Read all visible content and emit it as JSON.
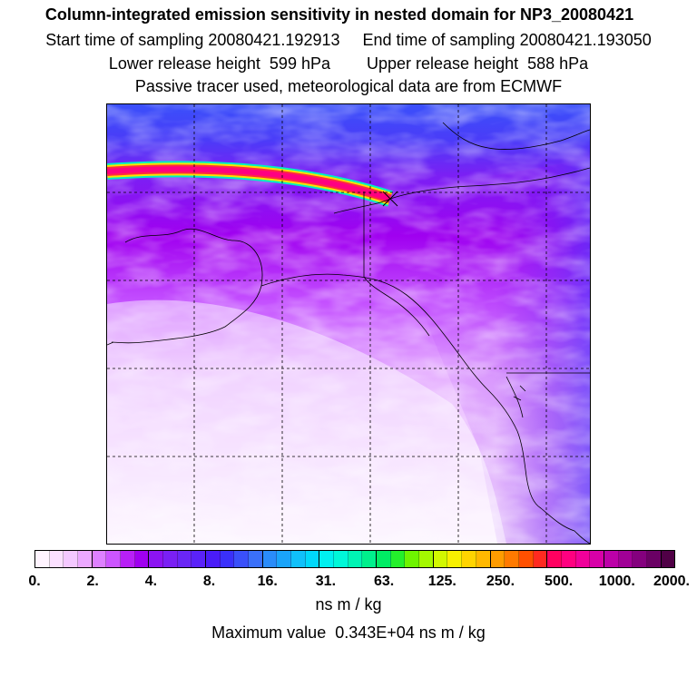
{
  "header": {
    "title": "Column-integrated emission sensitivity in nested domain for NP3_20080421",
    "sampling_line": "Start time of sampling 20080421.192913     End time of sampling 20080421.193050",
    "release_line": "Lower release height  599 hPa        Upper release height  588 hPa",
    "tracer_line": "Passive tracer used, meteorological data are from ECMWF"
  },
  "map": {
    "region": "Alaska, western Canada and northeast Pacific",
    "grid": "dashed",
    "release_marker": "x"
  },
  "colorbar": {
    "tick_labels": [
      "0.",
      "2.",
      "4.",
      "8.",
      "16.",
      "31.",
      "63.",
      "125.",
      "250.",
      "500.",
      "1000.",
      "2000."
    ],
    "colors": [
      "#fff4ff",
      "#fbe0ff",
      "#f4c8ff",
      "#eca8ff",
      "#de80ff",
      "#cc55ff",
      "#b820f6",
      "#a000f0",
      "#8c14f2",
      "#7a20f4",
      "#6a26f6",
      "#5a22f8",
      "#4a1cf8",
      "#3a30fa",
      "#3a50fa",
      "#3a70fa",
      "#2a8cfa",
      "#1aa4fa",
      "#10c0fa",
      "#00d8fa",
      "#00f0f0",
      "#00f8d8",
      "#00f4b4",
      "#00f08c",
      "#00ec64",
      "#24f02c",
      "#6ef400",
      "#a4f800",
      "#d2f800",
      "#f8f000",
      "#ffd400",
      "#ffb800",
      "#ff9c00",
      "#ff7a00",
      "#ff5000",
      "#ff2a20",
      "#ff0060",
      "#ff0080",
      "#f0009a",
      "#d800a8",
      "#bc00a8",
      "#a00096",
      "#84007e",
      "#6a0064",
      "#500046"
    ],
    "unit": "ns m / kg"
  },
  "max_value_line": "Maximum value  0.343E+04 ns m / kg"
}
